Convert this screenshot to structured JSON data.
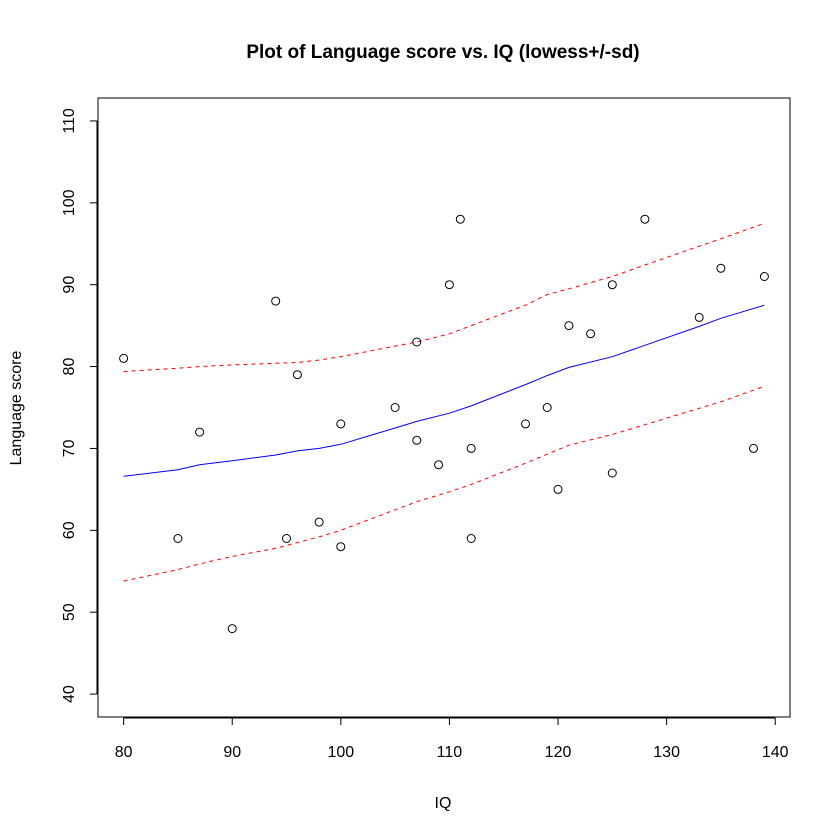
{
  "chart_data": {
    "type": "scatter",
    "title": "Plot of Language score vs. IQ   (lowess+/-sd)",
    "xlabel": "IQ",
    "ylabel": "Language score",
    "xlim": [
      77.64,
      141.36
    ],
    "ylim": [
      37.2,
      112.8
    ],
    "xticks": [
      80,
      90,
      100,
      110,
      120,
      130,
      140
    ],
    "yticks": [
      40,
      50,
      60,
      70,
      80,
      90,
      100,
      110
    ],
    "grid": false,
    "points": [
      [
        80,
        81
      ],
      [
        85,
        59
      ],
      [
        87,
        72
      ],
      [
        90,
        48
      ],
      [
        94,
        88
      ],
      [
        95,
        59
      ],
      [
        96,
        79
      ],
      [
        98,
        61
      ],
      [
        100,
        73
      ],
      [
        100,
        58
      ],
      [
        105,
        75
      ],
      [
        107,
        83
      ],
      [
        107,
        71
      ],
      [
        109,
        68
      ],
      [
        110,
        90
      ],
      [
        111,
        98
      ],
      [
        112,
        70
      ],
      [
        112,
        59
      ],
      [
        117,
        73
      ],
      [
        119,
        75
      ],
      [
        120,
        65
      ],
      [
        121,
        85
      ],
      [
        123,
        84
      ],
      [
        125,
        90
      ],
      [
        125,
        67
      ],
      [
        128,
        98
      ],
      [
        133,
        86
      ],
      [
        135,
        92
      ],
      [
        138,
        70
      ],
      [
        139,
        91
      ]
    ],
    "series": [
      {
        "style": "solid",
        "color": "#0000ff",
        "x": [
          80,
          85,
          87,
          90,
          94,
          96,
          98,
          100,
          105,
          107,
          110,
          112,
          117,
          119,
          121,
          125,
          128,
          133,
          135,
          139
        ],
        "y": [
          66.6,
          67.4,
          68.0,
          68.5,
          69.2,
          69.7,
          70.0,
          70.5,
          72.5,
          73.3,
          74.3,
          75.2,
          77.8,
          78.9,
          79.9,
          81.2,
          82.6,
          84.9,
          85.9,
          87.5
        ]
      },
      {
        "style": "dashed",
        "color": "#ff0000",
        "x": [
          80,
          85,
          87,
          90,
          94,
          96,
          98,
          100,
          105,
          107,
          110,
          112,
          117,
          119,
          121,
          125,
          128,
          133,
          135,
          139
        ],
        "y": [
          79.4,
          79.8,
          80.0,
          80.2,
          80.4,
          80.5,
          80.8,
          81.2,
          82.5,
          83.0,
          84.0,
          85.0,
          87.5,
          88.8,
          89.5,
          91.0,
          92.4,
          94.7,
          95.6,
          97.5
        ]
      },
      {
        "style": "dashed",
        "color": "#ff0000",
        "x": [
          80,
          85,
          87,
          90,
          94,
          96,
          98,
          100,
          105,
          107,
          110,
          112,
          117,
          119,
          121,
          125,
          128,
          133,
          135,
          139
        ],
        "y": [
          53.8,
          55.2,
          55.9,
          56.8,
          57.8,
          58.5,
          59.2,
          60.0,
          62.5,
          63.5,
          64.7,
          65.6,
          68.2,
          69.3,
          70.4,
          71.7,
          72.9,
          74.9,
          75.7,
          77.6
        ]
      }
    ]
  }
}
